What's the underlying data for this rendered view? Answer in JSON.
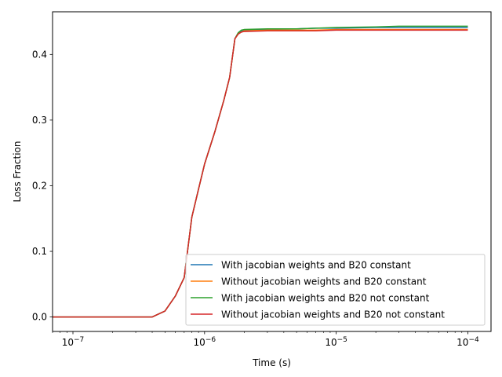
{
  "chart_data": {
    "type": "line",
    "title": "",
    "xlabel": "Time (s)",
    "ylabel": "Loss Fraction",
    "xscale": "log",
    "xlim": [
      7e-08,
      0.00015
    ],
    "ylim": [
      -0.022,
      0.465
    ],
    "xticks": [
      {
        "value": 1e-07,
        "base": "10",
        "exp": "−7"
      },
      {
        "value": 1e-06,
        "base": "10",
        "exp": "−6"
      },
      {
        "value": 1e-05,
        "base": "10",
        "exp": "−5"
      },
      {
        "value": 0.0001,
        "base": "10",
        "exp": "−4"
      }
    ],
    "yticks": [
      "0.0",
      "0.1",
      "0.2",
      "0.3",
      "0.4"
    ],
    "grid": false,
    "legend": "lower-right",
    "series": [
      {
        "name": "With jacobian weights and B20 constant",
        "color": "#1f77b4",
        "x": [
          6e-08,
          1e-07,
          2e-07,
          3e-07,
          4e-07,
          5e-07,
          6e-07,
          7e-07,
          8e-07,
          9e-07,
          1e-06,
          1.2e-06,
          1.4e-06,
          1.55e-06,
          1.7e-06,
          1.8e-06,
          1.9e-06,
          2e-06,
          3e-06,
          5e-06,
          7e-06,
          1e-05,
          2e-05,
          3e-05,
          5e-05,
          0.0001
        ],
        "y": [
          0,
          0,
          0,
          0,
          0,
          0.009,
          0.032,
          0.06,
          0.152,
          0.195,
          0.233,
          0.283,
          0.33,
          0.365,
          0.424,
          0.432,
          0.436,
          0.437,
          0.438,
          0.439,
          0.44,
          0.44,
          0.441,
          0.441,
          0.441,
          0.441
        ]
      },
      {
        "name": "Without jacobian weights and B20 constant",
        "color": "#ff7f0e",
        "x": [
          6e-08,
          1e-07,
          2e-07,
          3e-07,
          4e-07,
          5e-07,
          6e-07,
          7e-07,
          8e-07,
          9e-07,
          1e-06,
          1.2e-06,
          1.4e-06,
          1.55e-06,
          1.7e-06,
          1.8e-06,
          1.9e-06,
          2e-06,
          3e-06,
          5e-06,
          7e-06,
          1e-05,
          2e-05,
          3e-05,
          5e-05,
          0.0001
        ],
        "y": [
          0,
          0,
          0,
          0,
          0,
          0.009,
          0.032,
          0.06,
          0.152,
          0.195,
          0.233,
          0.283,
          0.33,
          0.365,
          0.424,
          0.431,
          0.434,
          0.436,
          0.437,
          0.437,
          0.437,
          0.438,
          0.438,
          0.438,
          0.438,
          0.438
        ]
      },
      {
        "name": "With jacobian weights and B20 not constant",
        "color": "#2ca02c",
        "x": [
          6e-08,
          1e-07,
          2e-07,
          3e-07,
          4e-07,
          5e-07,
          6e-07,
          7e-07,
          8e-07,
          9e-07,
          1e-06,
          1.2e-06,
          1.4e-06,
          1.55e-06,
          1.7e-06,
          1.8e-06,
          1.9e-06,
          2e-06,
          3e-06,
          5e-06,
          7e-06,
          1e-05,
          2e-05,
          3e-05,
          5e-05,
          0.0001
        ],
        "y": [
          0,
          0,
          0,
          0,
          0,
          0.009,
          0.032,
          0.06,
          0.152,
          0.195,
          0.233,
          0.283,
          0.33,
          0.365,
          0.424,
          0.433,
          0.437,
          0.438,
          0.439,
          0.439,
          0.44,
          0.441,
          0.442,
          0.443,
          0.443,
          0.443
        ]
      },
      {
        "name": "Without jacobian weights and B20 not constant",
        "color": "#d62728",
        "x": [
          6e-08,
          1e-07,
          2e-07,
          3e-07,
          4e-07,
          5e-07,
          6e-07,
          7e-07,
          8e-07,
          9e-07,
          1e-06,
          1.2e-06,
          1.4e-06,
          1.55e-06,
          1.7e-06,
          1.8e-06,
          1.9e-06,
          2e-06,
          3e-06,
          5e-06,
          7e-06,
          1e-05,
          2e-05,
          3e-05,
          5e-05,
          0.0001
        ],
        "y": [
          0,
          0,
          0,
          0,
          0,
          0.009,
          0.032,
          0.06,
          0.152,
          0.195,
          0.233,
          0.283,
          0.33,
          0.365,
          0.424,
          0.431,
          0.434,
          0.435,
          0.436,
          0.436,
          0.436,
          0.437,
          0.437,
          0.437,
          0.437,
          0.437
        ]
      }
    ]
  }
}
